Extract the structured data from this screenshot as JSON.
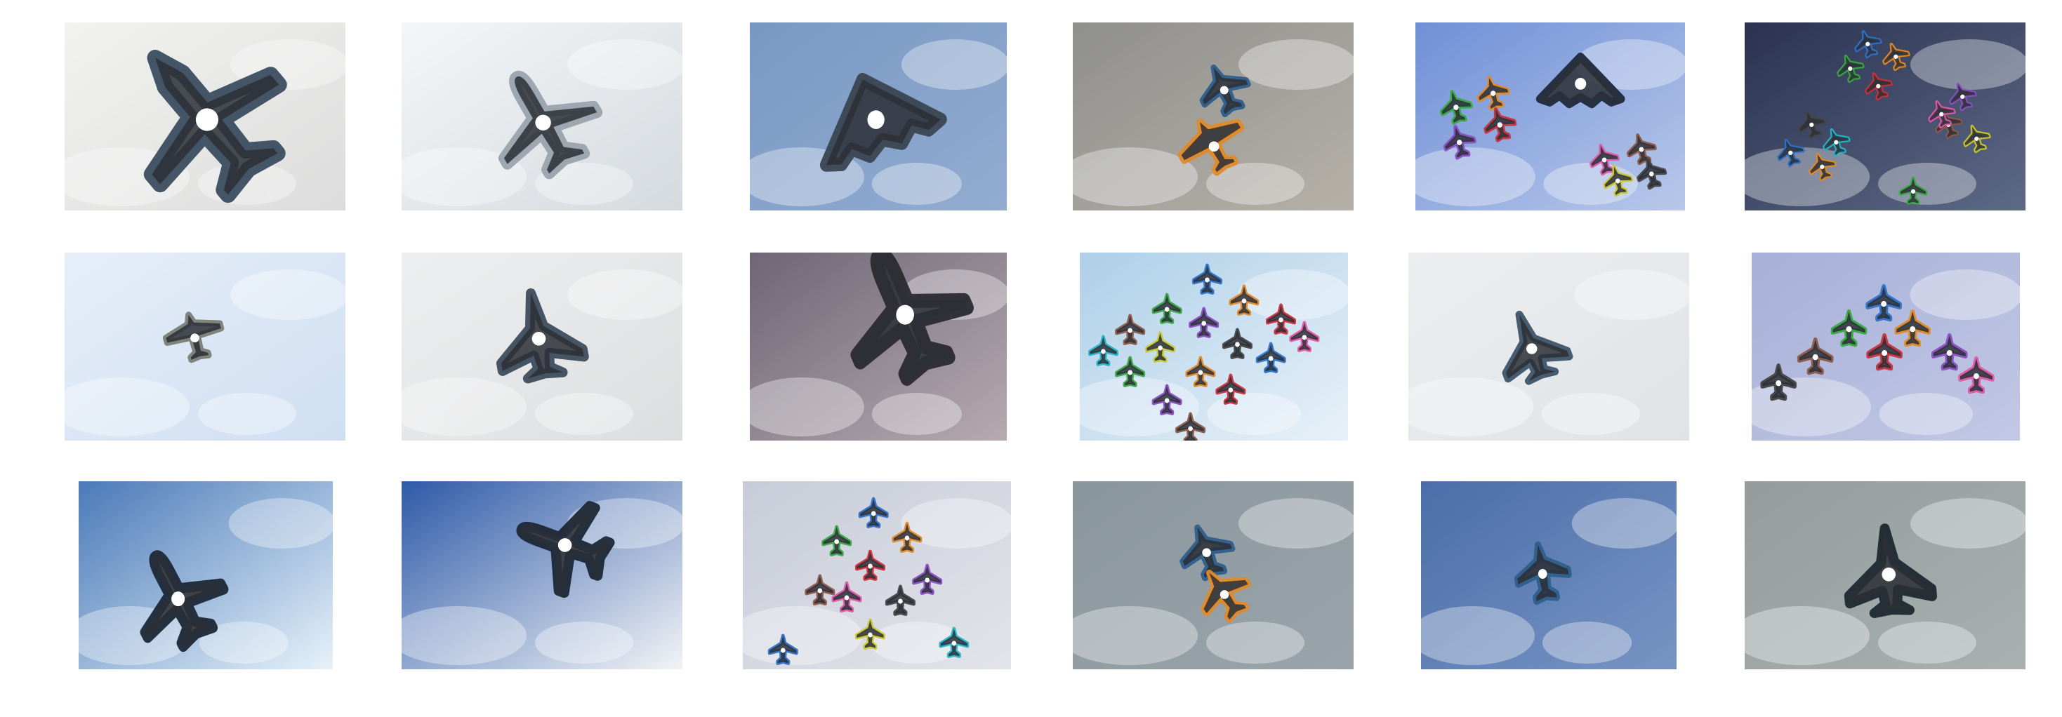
{
  "grid": {
    "rows": 3,
    "columns": 6,
    "tiles": [
      {
        "id": "r1c1",
        "sky": [
          "#f2f2f0",
          "#dcdcdc"
        ],
        "aircraft": [
          {
            "kind": "transport",
            "color": "#3a4d60"
          }
        ]
      },
      {
        "id": "r1c2",
        "sky": [
          "#f4f6f8",
          "#d5dade"
        ],
        "aircraft": [
          {
            "kind": "airliner",
            "color": "#9aa3ad"
          }
        ]
      },
      {
        "id": "r1c3",
        "sky": [
          "#7898c4",
          "#93acd0"
        ],
        "aircraft": [
          {
            "kind": "stealth",
            "color": "#3b4652"
          }
        ]
      },
      {
        "id": "r1c4",
        "sky": [
          "#8f8f8d",
          "#b5b1a8"
        ],
        "aircraft": [
          {
            "kind": "jet",
            "color": "#2f5f8c"
          },
          {
            "kind": "prop",
            "color": "#e08a2a"
          }
        ]
      },
      {
        "id": "r1c5",
        "sky": [
          "#6f8fd6",
          "#b8c8ea"
        ],
        "aircraft": [
          {
            "kind": "stealth",
            "color": "#1e2a3a"
          },
          {
            "kind": "jet",
            "color": "#3aa845"
          },
          {
            "kind": "jet",
            "color": "#e08a2a"
          },
          {
            "kind": "jet",
            "color": "#c8323c"
          },
          {
            "kind": "jet",
            "color": "#8a4fc0"
          },
          {
            "kind": "jet",
            "color": "#e058a8"
          },
          {
            "kind": "jet",
            "color": "#8b5a4a"
          },
          {
            "kind": "jet",
            "color": "#c8c830"
          },
          {
            "kind": "jet",
            "color": "#444444"
          }
        ]
      },
      {
        "id": "r1c6",
        "sky": [
          "#2a3250",
          "#5d6a86"
        ],
        "aircraft": [
          {
            "kind": "jet",
            "color": "#2f72c6"
          },
          {
            "kind": "jet",
            "color": "#e08a2a"
          },
          {
            "kind": "jet",
            "color": "#3aa845"
          },
          {
            "kind": "jet",
            "color": "#c8323c"
          },
          {
            "kind": "jet",
            "color": "#8a4fc0"
          },
          {
            "kind": "jet",
            "color": "#8b5a4a"
          },
          {
            "kind": "jet",
            "color": "#e058a8"
          },
          {
            "kind": "jet",
            "color": "#c8c830"
          },
          {
            "kind": "jet",
            "color": "#444444"
          },
          {
            "kind": "jet",
            "color": "#26b5c8"
          },
          {
            "kind": "jet",
            "color": "#2f72c6"
          },
          {
            "kind": "jet",
            "color": "#e08a2a"
          },
          {
            "kind": "jet",
            "color": "#3aa845"
          }
        ]
      },
      {
        "id": "r2c1",
        "sky": [
          "#e6eef8",
          "#cfdff2"
        ],
        "aircraft": [
          {
            "kind": "prop",
            "color": "#7a7e76"
          }
        ]
      },
      {
        "id": "r2c2",
        "sky": [
          "#eeeff0",
          "#dcdedf"
        ],
        "aircraft": [
          {
            "kind": "fighter",
            "color": "#3e4c5c"
          }
        ]
      },
      {
        "id": "r2c3",
        "sky": [
          "#6e6676",
          "#b6aab0"
        ],
        "aircraft": [
          {
            "kind": "airliner",
            "color": "#2a2a30"
          }
        ]
      },
      {
        "id": "r2c4",
        "sky": [
          "#aecfe8",
          "#e8f1f8"
        ],
        "aircraft": [
          {
            "kind": "jet",
            "color": "#2f72c6"
          },
          {
            "kind": "jet",
            "color": "#e08a2a"
          },
          {
            "kind": "jet",
            "color": "#3aa845"
          },
          {
            "kind": "jet",
            "color": "#8a4fc0"
          },
          {
            "kind": "jet",
            "color": "#c8323c"
          },
          {
            "kind": "jet",
            "color": "#8b5a4a"
          },
          {
            "kind": "jet",
            "color": "#e058a8"
          },
          {
            "kind": "jet",
            "color": "#26b5c8"
          },
          {
            "kind": "jet",
            "color": "#c8c830"
          },
          {
            "kind": "jet",
            "color": "#444444"
          },
          {
            "kind": "jet",
            "color": "#2f72c6"
          },
          {
            "kind": "jet",
            "color": "#3aa845"
          },
          {
            "kind": "jet",
            "color": "#e08a2a"
          },
          {
            "kind": "jet",
            "color": "#c8323c"
          },
          {
            "kind": "jet",
            "color": "#8a4fc0"
          },
          {
            "kind": "jet",
            "color": "#8b5a4a"
          }
        ]
      },
      {
        "id": "r2c5",
        "sky": [
          "#eceef0",
          "#e0e3e6"
        ],
        "aircraft": [
          {
            "kind": "fighter",
            "color": "#3e5468"
          }
        ]
      },
      {
        "id": "r2c6",
        "sky": [
          "#a6b0d8",
          "#c2c8e4"
        ],
        "aircraft": [
          {
            "kind": "jet",
            "color": "#2f72c6"
          },
          {
            "kind": "jet",
            "color": "#3aa845"
          },
          {
            "kind": "jet",
            "color": "#e08a2a"
          },
          {
            "kind": "jet",
            "color": "#c8323c"
          },
          {
            "kind": "jet",
            "color": "#8b5a4a"
          },
          {
            "kind": "jet",
            "color": "#8a4fc0"
          },
          {
            "kind": "jet",
            "color": "#444444"
          },
          {
            "kind": "jet",
            "color": "#e058a8"
          }
        ]
      },
      {
        "id": "r3c1",
        "sky": [
          "#4a7ab8",
          "#e6f2fa"
        ],
        "aircraft": [
          {
            "kind": "airliner",
            "color": "#1e2836"
          }
        ]
      },
      {
        "id": "r3c2",
        "sky": [
          "#2e5aa8",
          "#f2f4f6"
        ],
        "aircraft": [
          {
            "kind": "airliner",
            "color": "#1e2836"
          }
        ]
      },
      {
        "id": "r3c3",
        "sky": [
          "#c8ccd8",
          "#e2e4ea"
        ],
        "aircraft": [
          {
            "kind": "jet",
            "color": "#2f72c6"
          },
          {
            "kind": "jet",
            "color": "#3aa845"
          },
          {
            "kind": "jet",
            "color": "#e08a2a"
          },
          {
            "kind": "jet",
            "color": "#c8323c"
          },
          {
            "kind": "jet",
            "color": "#8b5a4a"
          },
          {
            "kind": "jet",
            "color": "#e058a8"
          },
          {
            "kind": "jet",
            "color": "#8a4fc0"
          },
          {
            "kind": "jet",
            "color": "#444444"
          },
          {
            "kind": "jet",
            "color": "#c8c830"
          },
          {
            "kind": "jet",
            "color": "#2f72c6"
          },
          {
            "kind": "jet",
            "color": "#26b5c8"
          }
        ]
      },
      {
        "id": "r3c4",
        "sky": [
          "#8a969e",
          "#9aa4aa"
        ],
        "aircraft": [
          {
            "kind": "jet",
            "color": "#2f5f8c"
          },
          {
            "kind": "jet",
            "color": "#e08a2a"
          }
        ]
      },
      {
        "id": "r3c5",
        "sky": [
          "#4a6ea8",
          "#7894c4"
        ],
        "aircraft": [
          {
            "kind": "jet",
            "color": "#2f5f8c"
          }
        ]
      },
      {
        "id": "r3c6",
        "sky": [
          "#949c9c",
          "#a8b0b0"
        ],
        "aircraft": [
          {
            "kind": "fighter",
            "color": "#1e2832"
          }
        ]
      }
    ]
  }
}
